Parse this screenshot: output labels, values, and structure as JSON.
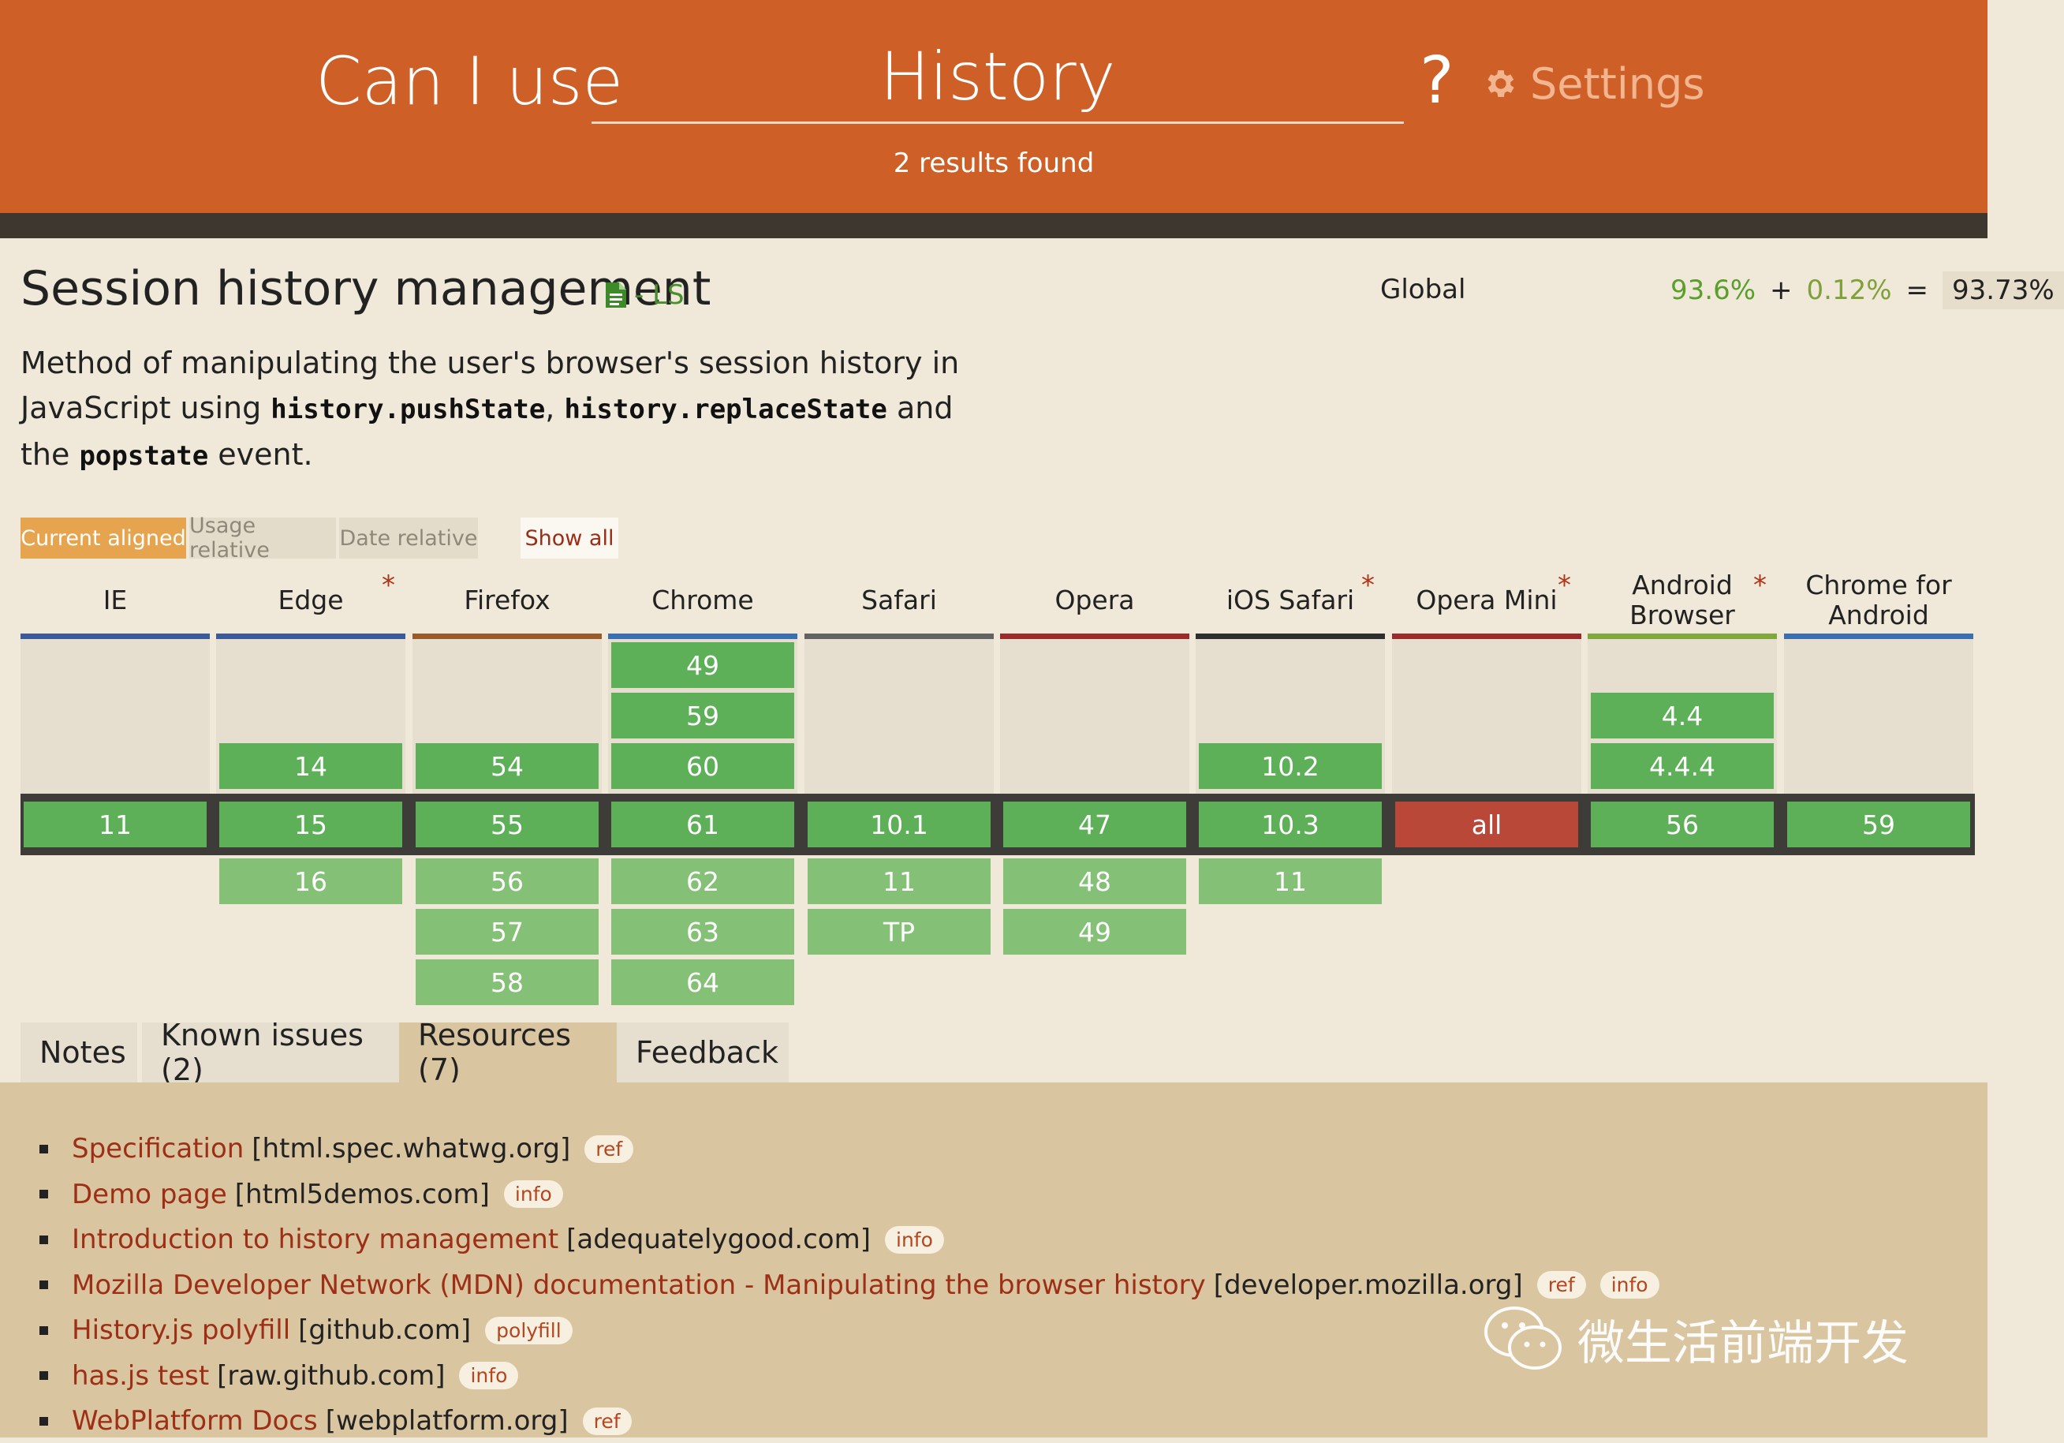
{
  "header": {
    "prefix": "Can I use",
    "search_value": "History",
    "help": "?",
    "settings_label": "Settings",
    "results": "2 results found"
  },
  "feature": {
    "title": "Session history management",
    "spec_status": "- LS",
    "global_label": "Global",
    "usage_supported": "93.6%",
    "usage_plus": "+",
    "usage_partial": "0.12%",
    "usage_equals": "=",
    "usage_total": "93.73%",
    "desc_1": "Method of manipulating the user's browser's session history in JavaScript using ",
    "code_1": "history.pushState",
    "desc_2": ", ",
    "code_2": "history.replaceState",
    "desc_3": " and the ",
    "code_3": "popstate",
    "desc_4": " event."
  },
  "view_buttons": {
    "current": "Current aligned",
    "usage": "Usage relative",
    "date": "Date relative",
    "show_all": "Show all"
  },
  "browsers": [
    {
      "name": "IE",
      "color": "#3b5a9a",
      "asterisk": "",
      "past": [],
      "current": "11",
      "future": []
    },
    {
      "name": "Edge",
      "color": "#3b5a9a",
      "asterisk": "*",
      "past": [
        "14"
      ],
      "current": "15",
      "future": [
        "16"
      ]
    },
    {
      "name": "Firefox",
      "color": "#9a5a2a",
      "asterisk": "",
      "past": [
        "54"
      ],
      "current": "55",
      "future": [
        "56",
        "57",
        "58"
      ]
    },
    {
      "name": "Chrome",
      "color": "#3a6fb0",
      "asterisk": "",
      "past": [
        "49",
        "59",
        "60"
      ],
      "current": "61",
      "future": [
        "62",
        "63",
        "64"
      ]
    },
    {
      "name": "Safari",
      "color": "#636363",
      "asterisk": "",
      "past": [],
      "current": "10.1",
      "future": [
        "11",
        "TP"
      ]
    },
    {
      "name": "Opera",
      "color": "#9b2b2b",
      "asterisk": "",
      "past": [],
      "current": "47",
      "future": [
        "48",
        "49"
      ]
    },
    {
      "name": "iOS Safari",
      "color": "#2f2f2f",
      "asterisk": "*",
      "past": [
        "10.2"
      ],
      "current": "10.3",
      "future": [
        "11"
      ]
    },
    {
      "name": "Opera Mini",
      "color": "#9b2b2b",
      "asterisk": "*",
      "past": [],
      "current": "all",
      "current_unsupported": true,
      "future": []
    },
    {
      "name": "Android Browser",
      "color": "#80a83a",
      "asterisk": "*",
      "past": [
        "4.4",
        "4.4.4"
      ],
      "current": "56",
      "future": []
    },
    {
      "name": "Chrome for Android",
      "color": "#3a6fb0",
      "asterisk": "",
      "past": [],
      "current": "59",
      "future": []
    }
  ],
  "tabs": [
    "Notes",
    "Known issues (2)",
    "Resources (7)",
    "Feedback"
  ],
  "resources": [
    {
      "link": "Specification",
      "domain": "[html.spec.whatwg.org]",
      "badges": [
        "ref"
      ]
    },
    {
      "link": "Demo page",
      "domain": "[html5demos.com]",
      "badges": [
        "info"
      ]
    },
    {
      "link": "Introduction to history management",
      "domain": "[adequatelygood.com]",
      "badges": [
        "info"
      ]
    },
    {
      "link": "Mozilla Developer Network (MDN) documentation - Manipulating the browser history",
      "domain": "[developer.mozilla.org]",
      "badges": [
        "ref",
        "info"
      ]
    },
    {
      "link": "History.js polyfill",
      "domain": "[github.com]",
      "badges": [
        "polyfill"
      ]
    },
    {
      "link": "has.js test",
      "domain": "[raw.github.com]",
      "badges": [
        "info"
      ]
    },
    {
      "link": "WebPlatform Docs",
      "domain": "[webplatform.org]",
      "badges": [
        "ref"
      ]
    }
  ],
  "watermark": "微生活前端开发",
  "icons": {
    "settings": "gear-icon",
    "spec": "document-icon",
    "watermark": "wechat-icon"
  }
}
